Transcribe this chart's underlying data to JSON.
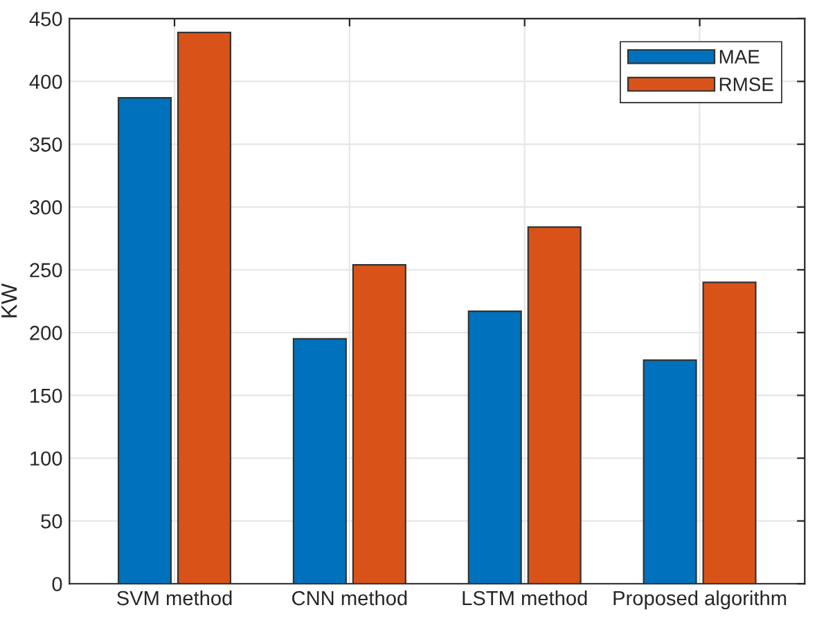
{
  "chart_data": {
    "type": "bar",
    "ylabel": "KW",
    "categories": [
      "SVM method",
      "CNN method",
      "LSTM method",
      "Proposed algorithm"
    ],
    "series": [
      {
        "name": "MAE",
        "color": "#0072bd",
        "values": [
          387,
          195,
          217,
          178
        ]
      },
      {
        "name": "RMSE",
        "color": "#d95319",
        "values": [
          439,
          254,
          284,
          240
        ]
      }
    ],
    "ylim": [
      0,
      450
    ],
    "yticks": [
      0,
      50,
      100,
      150,
      200,
      250,
      300,
      350,
      400,
      450
    ],
    "grid": true,
    "legend": "top right"
  }
}
